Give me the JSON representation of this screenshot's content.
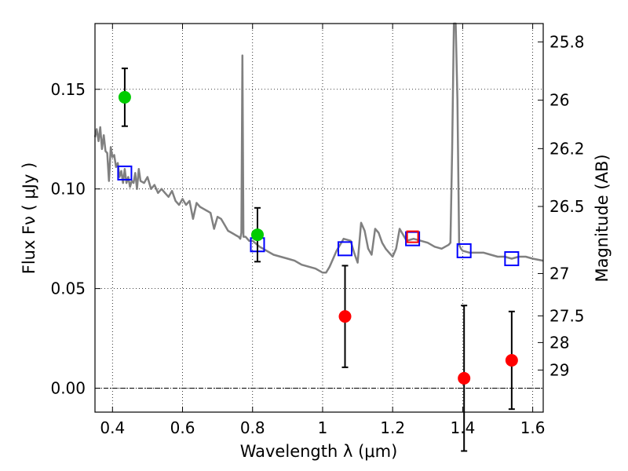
{
  "chart_data": {
    "type": "scatter",
    "title": "",
    "xlabel": "Wavelength  λ (μm)",
    "ylabel": "Flux  Fν  ( μJy )",
    "y2label": "Magnitude (AB)",
    "xlim": [
      0.35,
      1.63
    ],
    "ylim": [
      -0.012,
      0.183
    ],
    "grid": true,
    "x_ticks": [
      0.4,
      0.6,
      0.8,
      1.0,
      1.2,
      1.4,
      1.6
    ],
    "x_tick_labels": [
      "0.4",
      "0.6",
      "0.8",
      "1",
      "1.2",
      "1.4",
      "1.6"
    ],
    "y_ticks": [
      0.0,
      0.05,
      0.1,
      0.15
    ],
    "y_tick_labels": [
      "0.00",
      "0.05",
      "0.10",
      "0.15"
    ],
    "y2_ticks": [
      {
        "mag": 25.8,
        "label": "25.8"
      },
      {
        "mag": 26.0,
        "label": "26"
      },
      {
        "mag": 26.2,
        "label": "26.2"
      },
      {
        "mag": 26.5,
        "label": "26.5"
      },
      {
        "mag": 27.0,
        "label": "27"
      },
      {
        "mag": 27.5,
        "label": "27.5"
      },
      {
        "mag": 28.0,
        "label": "28"
      },
      {
        "mag": 29.0,
        "label": "29"
      }
    ],
    "zero_line": 0.0,
    "series": [
      {
        "kind": "model_spectrum",
        "color": "#808080",
        "x": [
          0.35,
          0.355,
          0.36,
          0.365,
          0.37,
          0.375,
          0.38,
          0.385,
          0.39,
          0.395,
          0.4,
          0.405,
          0.41,
          0.415,
          0.42,
          0.425,
          0.43,
          0.435,
          0.44,
          0.445,
          0.45,
          0.455,
          0.46,
          0.465,
          0.47,
          0.475,
          0.48,
          0.49,
          0.5,
          0.51,
          0.52,
          0.53,
          0.54,
          0.55,
          0.56,
          0.57,
          0.58,
          0.59,
          0.6,
          0.61,
          0.62,
          0.63,
          0.64,
          0.65,
          0.66,
          0.67,
          0.68,
          0.69,
          0.7,
          0.71,
          0.72,
          0.73,
          0.74,
          0.75,
          0.76,
          0.765,
          0.768,
          0.771,
          0.774,
          0.78,
          0.79,
          0.8,
          0.82,
          0.84,
          0.86,
          0.88,
          0.9,
          0.92,
          0.94,
          0.96,
          0.98,
          1.0,
          1.01,
          1.02,
          1.04,
          1.06,
          1.08,
          1.09,
          1.1,
          1.11,
          1.12,
          1.13,
          1.14,
          1.15,
          1.16,
          1.17,
          1.18,
          1.19,
          1.2,
          1.21,
          1.22,
          1.24,
          1.26,
          1.28,
          1.3,
          1.32,
          1.34,
          1.36,
          1.365,
          1.37,
          1.375,
          1.38,
          1.385,
          1.39,
          1.395,
          1.4,
          1.42,
          1.44,
          1.46,
          1.48,
          1.5,
          1.52,
          1.54,
          1.56,
          1.58,
          1.6,
          1.63
        ],
        "y": [
          0.126,
          0.13,
          0.124,
          0.131,
          0.12,
          0.127,
          0.119,
          0.118,
          0.104,
          0.121,
          0.116,
          0.117,
          0.111,
          0.113,
          0.106,
          0.109,
          0.103,
          0.11,
          0.103,
          0.106,
          0.101,
          0.104,
          0.103,
          0.108,
          0.1,
          0.11,
          0.104,
          0.103,
          0.106,
          0.1,
          0.102,
          0.098,
          0.1,
          0.098,
          0.096,
          0.099,
          0.094,
          0.092,
          0.095,
          0.092,
          0.094,
          0.085,
          0.093,
          0.091,
          0.09,
          0.089,
          0.088,
          0.08,
          0.086,
          0.085,
          0.082,
          0.079,
          0.078,
          0.077,
          0.076,
          0.075,
          0.078,
          0.167,
          0.076,
          0.076,
          0.074,
          0.074,
          0.071,
          0.069,
          0.067,
          0.066,
          0.065,
          0.064,
          0.062,
          0.061,
          0.06,
          0.058,
          0.058,
          0.061,
          0.069,
          0.075,
          0.074,
          0.068,
          0.063,
          0.083,
          0.079,
          0.07,
          0.067,
          0.08,
          0.078,
          0.073,
          0.07,
          0.068,
          0.066,
          0.07,
          0.08,
          0.074,
          0.075,
          0.074,
          0.073,
          0.071,
          0.07,
          0.072,
          0.073,
          0.12,
          0.183,
          0.183,
          0.145,
          0.072,
          0.07,
          0.069,
          0.068,
          0.068,
          0.068,
          0.067,
          0.066,
          0.066,
          0.065,
          0.066,
          0.066,
          0.065,
          0.064
        ]
      },
      {
        "kind": "model_photometry",
        "marker": "square",
        "color": "#0000ff",
        "x": [
          0.435,
          0.814,
          1.064,
          1.257,
          1.404,
          1.54
        ],
        "y": [
          0.108,
          0.072,
          0.07,
          0.075,
          0.069,
          0.065
        ]
      },
      {
        "kind": "highlighted_square",
        "marker": "square",
        "color": "#ff0000",
        "x": [
          1.257
        ],
        "y": [
          0.076
        ]
      },
      {
        "kind": "detections",
        "marker": "circle",
        "color": "#00cc00",
        "x": [
          0.435,
          0.814
        ],
        "y": [
          0.146,
          0.077
        ],
        "yerr": [
          0.0145,
          0.0135
        ]
      },
      {
        "kind": "non_detections",
        "marker": "circle",
        "color": "#ff0000",
        "x": [
          1.064,
          1.404,
          1.54
        ],
        "y": [
          0.036,
          0.005,
          0.014
        ],
        "yerr": [
          0.0255,
          0.0365,
          0.0245
        ]
      }
    ]
  }
}
